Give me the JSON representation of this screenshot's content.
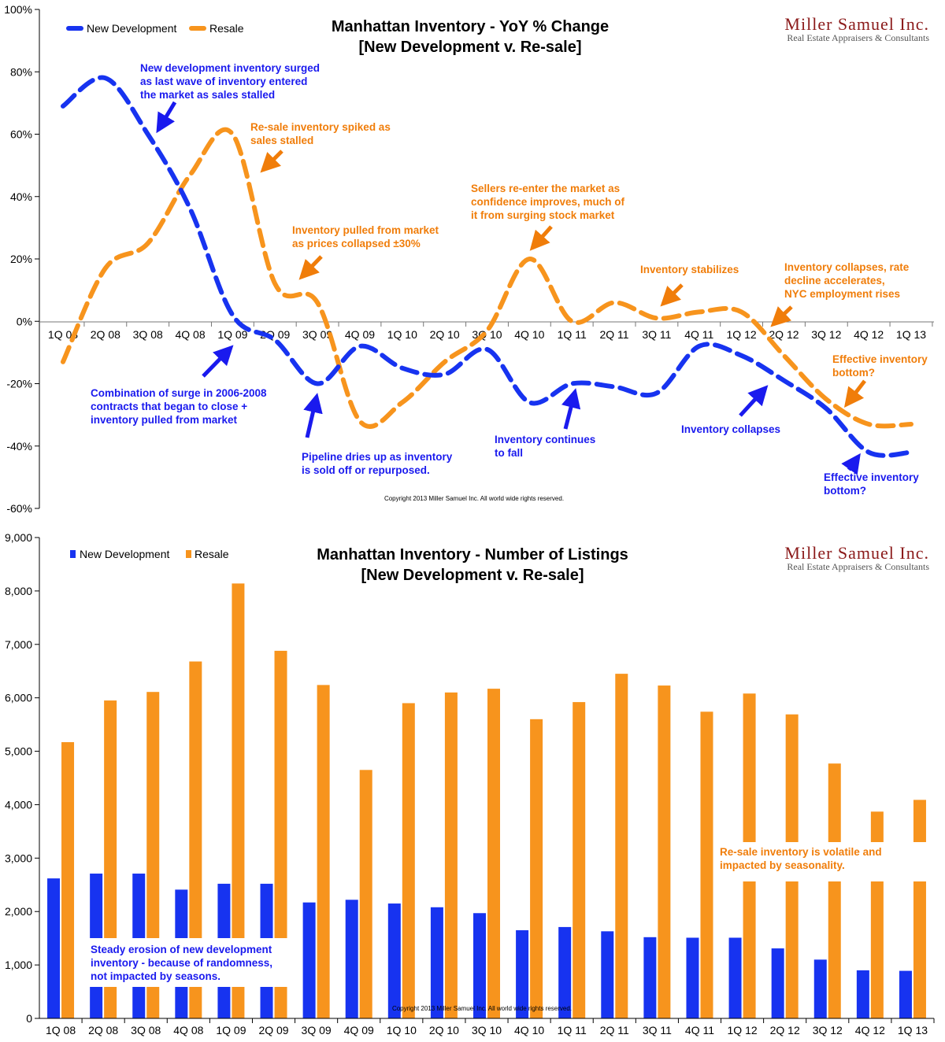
{
  "colors": {
    "new_dev": "#1733f0",
    "resale": "#f7941d",
    "ann_blue": "#1a1aee",
    "ann_orange": "#f07d0a",
    "brand": "#8b1a1a"
  },
  "brand": {
    "name": "Miller Samuel Inc.",
    "tagline": "Real Estate Appraisers & Consultants"
  },
  "chart_data": [
    {
      "type": "line",
      "title": "Manhattan Inventory - YoY % Change",
      "subtitle": "[New Development v. Re-sale]",
      "categories": [
        "1Q 08",
        "2Q 08",
        "3Q 08",
        "4Q 08",
        "1Q 09",
        "2Q 09",
        "3Q 09",
        "4Q 09",
        "1Q 10",
        "2Q 10",
        "3Q 10",
        "4Q 10",
        "1Q 11",
        "2Q 11",
        "3Q 11",
        "4Q 11",
        "1Q 12",
        "2Q 12",
        "3Q 12",
        "4Q 12",
        "1Q 13"
      ],
      "ylim": [
        -60,
        100
      ],
      "yticks": [
        -60,
        -40,
        -20,
        0,
        20,
        40,
        60,
        80,
        100
      ],
      "ytick_labels": [
        "-60%",
        "-40%",
        "-20%",
        "0%",
        "20%",
        "40%",
        "60%",
        "80%",
        "100%"
      ],
      "legend_position": "top-left",
      "series": [
        {
          "name": "New Development",
          "values": [
            69,
            78,
            60,
            36,
            2,
            -6,
            -20,
            -8,
            -15,
            -17,
            -9,
            -26,
            -20,
            -21,
            -23,
            -8,
            -11,
            -19,
            -28,
            -42,
            -42
          ]
        },
        {
          "name": "Resale",
          "values": [
            -13,
            17,
            25,
            47,
            60,
            12,
            6,
            -32,
            -26,
            -13,
            -3,
            20,
            0,
            6,
            1,
            3,
            3,
            -11,
            -25,
            -33,
            -33
          ]
        }
      ],
      "annotations": [
        {
          "lines": [
            "New development inventory surged",
            "as last wave of inventory entered",
            "the market as sales stalled"
          ],
          "color": "blue"
        },
        {
          "lines": [
            "Re-sale inventory spiked as",
            "sales stalled"
          ],
          "color": "orange"
        },
        {
          "lines": [
            "Inventory pulled from market",
            "as prices collapsed ±30%"
          ],
          "color": "orange"
        },
        {
          "lines": [
            "Sellers re-enter the market as",
            "confidence improves, much of",
            "it from surging stock market"
          ],
          "color": "orange"
        },
        {
          "lines": [
            "Inventory stabilizes"
          ],
          "color": "orange"
        },
        {
          "lines": [
            "Inventory collapses, rate",
            "decline accelerates,",
            "NYC employment rises"
          ],
          "color": "orange"
        },
        {
          "lines": [
            "Effective inventory",
            "bottom?"
          ],
          "color": "orange"
        },
        {
          "lines": [
            "Combination of surge in 2006-2008",
            "contracts that began to close +",
            "inventory pulled from market"
          ],
          "color": "blue"
        },
        {
          "lines": [
            "Pipeline dries up as inventory",
            "is sold off or repurposed."
          ],
          "color": "blue"
        },
        {
          "lines": [
            "Inventory continues",
            "to fall"
          ],
          "color": "blue"
        },
        {
          "lines": [
            "Inventory collapses"
          ],
          "color": "blue"
        },
        {
          "lines": [
            "Effective inventory",
            "bottom?"
          ],
          "color": "blue"
        }
      ],
      "copyright": "Copyright 2013 Miller Samuel Inc.  All world wide rights reserved."
    },
    {
      "type": "bar",
      "title": "Manhattan Inventory - Number of Listings",
      "subtitle": "[New Development v. Re-sale]",
      "categories": [
        "1Q 08",
        "2Q 08",
        "3Q 08",
        "4Q 08",
        "1Q 09",
        "2Q 09",
        "3Q 09",
        "4Q 09",
        "1Q 10",
        "2Q 10",
        "3Q 10",
        "4Q 10",
        "1Q 11",
        "2Q 11",
        "3Q 11",
        "4Q 11",
        "1Q 12",
        "2Q 12",
        "3Q 12",
        "4Q 12",
        "1Q 13"
      ],
      "ylim": [
        0,
        9000
      ],
      "yticks": [
        0,
        1000,
        2000,
        3000,
        4000,
        5000,
        6000,
        7000,
        8000,
        9000
      ],
      "ytick_labels": [
        "0",
        "1,000",
        "2,000",
        "3,000",
        "4,000",
        "5,000",
        "6,000",
        "7,000",
        "8,000",
        "9,000"
      ],
      "legend_position": "top-left",
      "series": [
        {
          "name": "New Development",
          "values": [
            2620,
            2710,
            2710,
            2410,
            2520,
            2520,
            2170,
            2220,
            2150,
            2080,
            1970,
            1650,
            1710,
            1630,
            1520,
            1510,
            1510,
            1310,
            1100,
            900,
            890
          ]
        },
        {
          "name": "Resale",
          "values": [
            5170,
            5950,
            6110,
            6680,
            8140,
            6880,
            6240,
            4650,
            5900,
            6100,
            6170,
            5600,
            5920,
            6450,
            6230,
            5740,
            6080,
            5690,
            4770,
            3870,
            4090
          ]
        }
      ],
      "annotations": [
        {
          "lines": [
            "Steady erosion of new development",
            "inventory - because of randomness,",
            "not impacted by seasons."
          ],
          "color": "blue"
        },
        {
          "lines": [
            "Re-sale inventory is volatile and",
            "impacted by seasonality."
          ],
          "color": "orange"
        }
      ],
      "copyright": "Copyright 2013 Miller Samuel Inc.  All world wide rights reserved."
    }
  ]
}
